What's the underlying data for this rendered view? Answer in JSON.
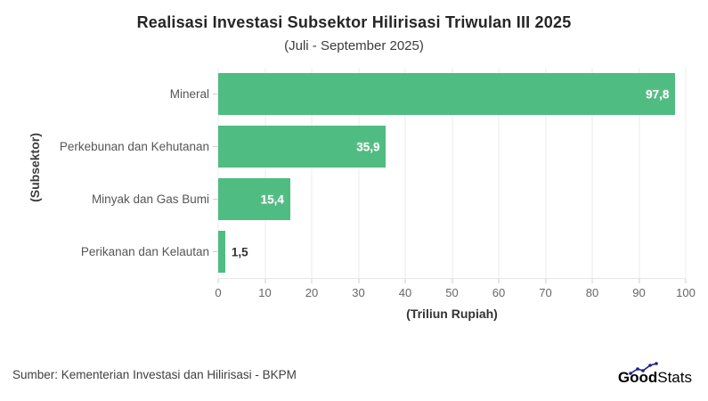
{
  "title": "Realisasi Investasi Subsektor Hilirisasi Triwulan III 2025",
  "subtitle": "(Juli - September 2025)",
  "chart_data": {
    "type": "bar",
    "orientation": "horizontal",
    "title": "Realisasi Investasi Subsektor Hilirisasi Triwulan III 2025",
    "subtitle": "(Juli - September 2025)",
    "categories": [
      "Mineral",
      "Perkebunan dan Kehutanan",
      "Minyak dan Gas Bumi",
      "Perikanan dan Kelautan"
    ],
    "values": [
      97.8,
      35.9,
      15.4,
      1.5
    ],
    "value_labels": [
      "97,8",
      "35,9",
      "15,4",
      "1,5"
    ],
    "xlabel": "(Triliun Rupiah)",
    "ylabel": "(Subsektor)",
    "xlim": [
      0,
      100
    ],
    "xticks": [
      0,
      10,
      20,
      30,
      40,
      50,
      60,
      70,
      80,
      90,
      100
    ],
    "grid": true,
    "legend": "none",
    "bar_color": "#4fbc81"
  },
  "footer": {
    "source": "Sumber: Kementerian Investasi dan Hilirisasi - BKPM",
    "logo": {
      "part1": "Good",
      "part2": "Stats"
    }
  },
  "colors": {
    "bar": "#4fbc81",
    "logo_dark": "#1b2185",
    "logo_light": "#6b74c9",
    "background": "#ffffff"
  }
}
